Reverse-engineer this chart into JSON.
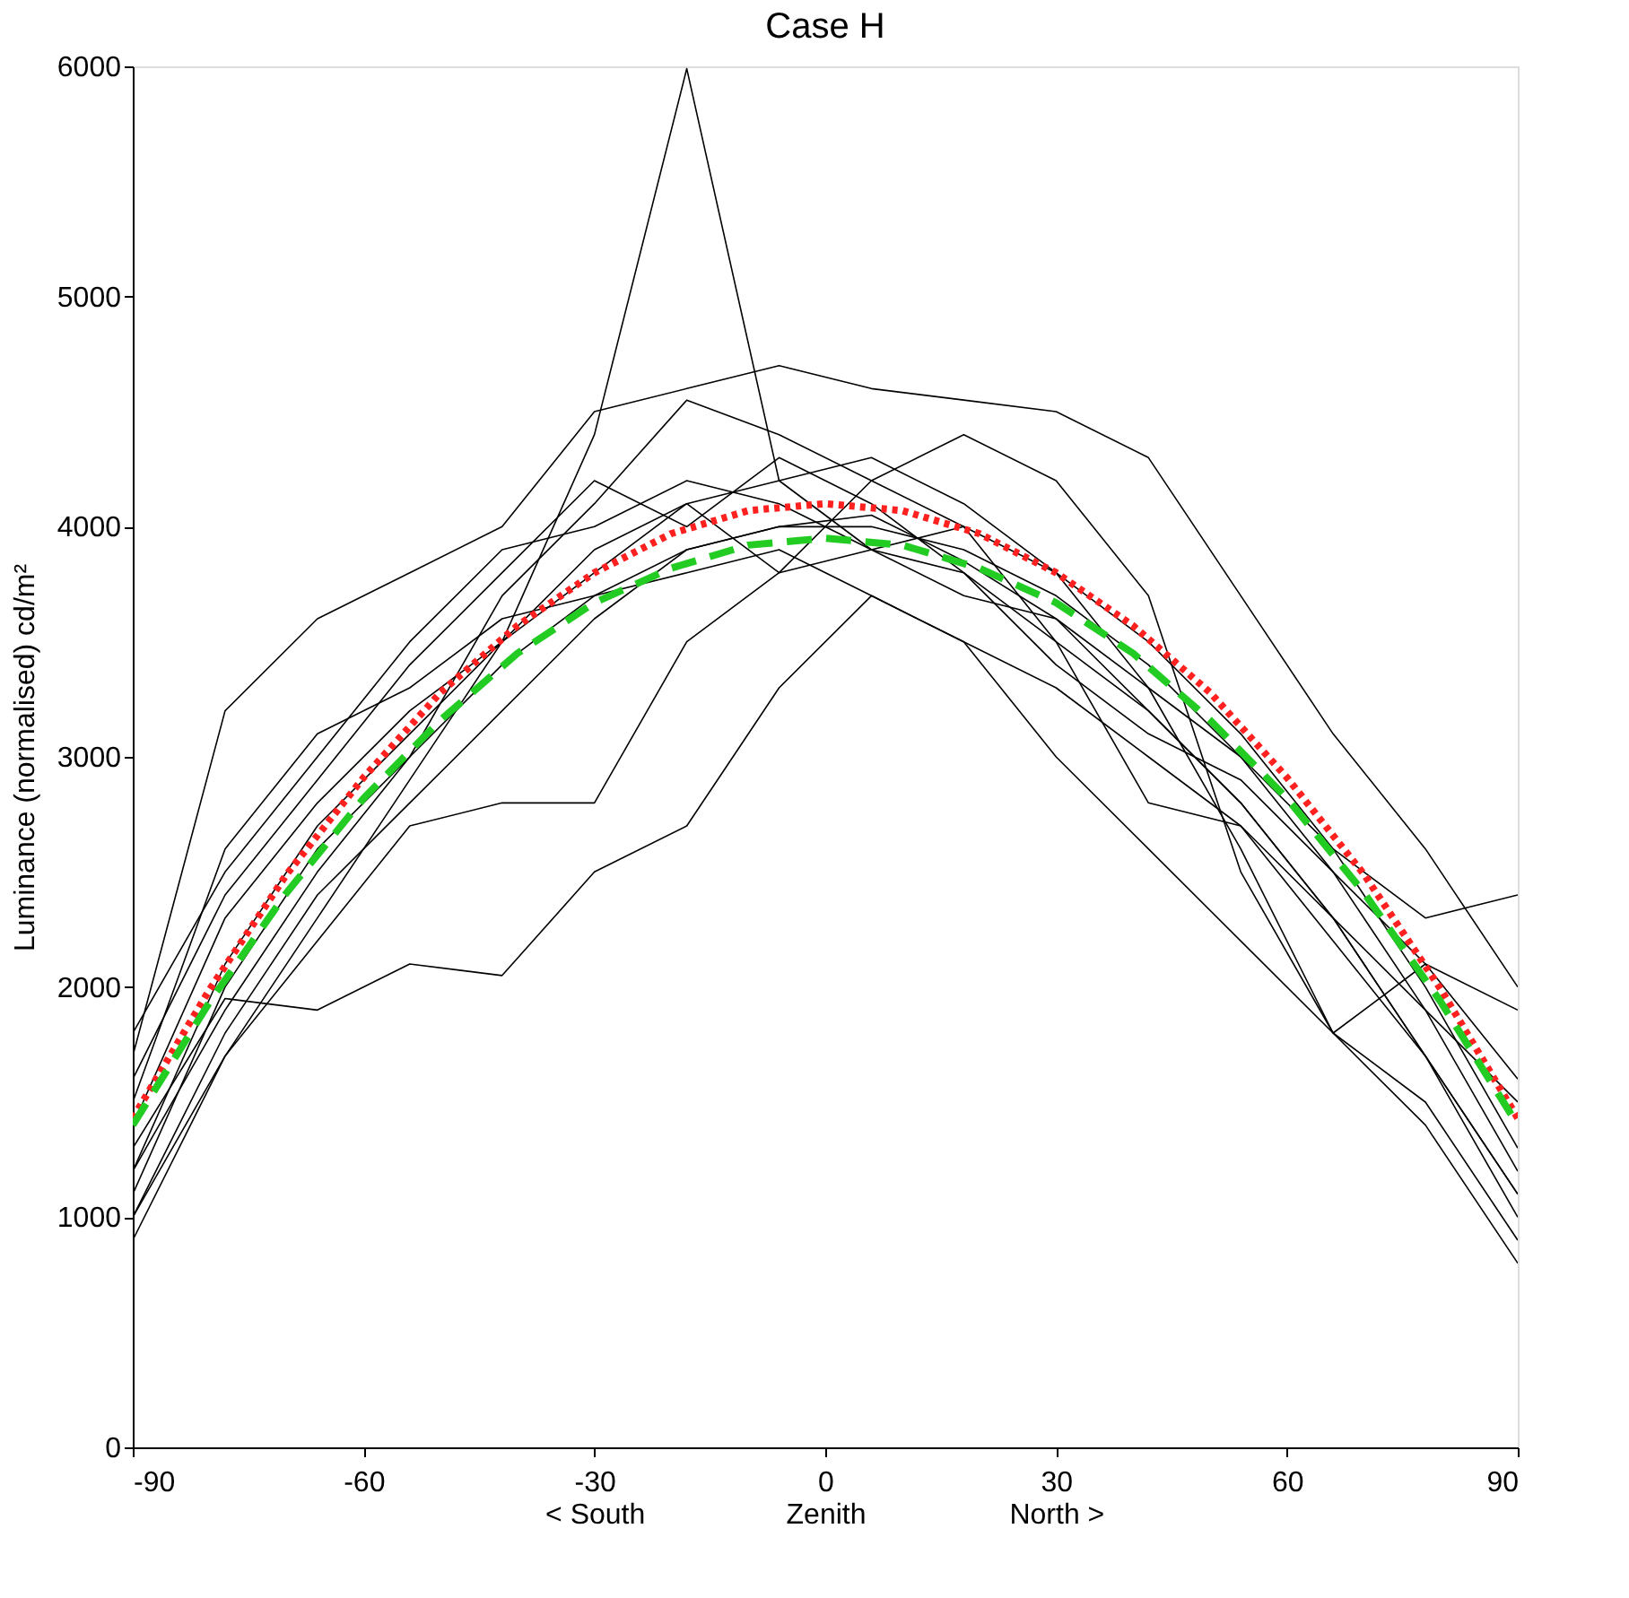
{
  "chart_data": {
    "type": "line",
    "title": "Case H",
    "ylabel": "Luminance (normalised) cd/m²",
    "xlim": [
      -90,
      90
    ],
    "ylim": [
      0,
      6000
    ],
    "xticks": [
      -90,
      -60,
      {
        "value": -30,
        "label": "-30\n< South"
      },
      {
        "value": 0,
        "label": "0\nZenith"
      },
      {
        "value": 30,
        "label": "30\nNorth >"
      },
      60,
      90
    ],
    "yticks": [
      0,
      1000,
      2000,
      3000,
      4000,
      5000,
      6000
    ],
    "grid": false,
    "line_style": "solid",
    "marker": "none",
    "x": [
      -90,
      -78,
      -66,
      -54,
      -42,
      -30,
      -18,
      -6,
      6,
      18,
      30,
      42,
      54,
      66,
      78,
      90
    ],
    "series": [
      {
        "color": "#000000",
        "values": [
          1200,
          1900,
          2500,
          3000,
          3400,
          3700,
          3900,
          4000,
          4000,
          3900,
          3700,
          3400,
          3000,
          2500,
          1900,
          1200
        ]
      },
      {
        "color": "#000000",
        "values": [
          1000,
          1700,
          2300,
          2900,
          3500,
          4400,
          5990,
          4200,
          3900,
          3800,
          3500,
          3200,
          2800,
          2300,
          1700,
          1100
        ]
      },
      {
        "color": "#000000",
        "values": [
          1300,
          1950,
          1900,
          2100,
          2050,
          2500,
          2700,
          3300,
          3700,
          3500,
          3000,
          2600,
          2200,
          1800,
          1500,
          900
        ]
      },
      {
        "color": "#000000",
        "values": [
          1700,
          3200,
          3600,
          3800,
          4000,
          4500,
          4600,
          4700,
          4600,
          4550,
          4500,
          4300,
          3700,
          3100,
          2600,
          2000
        ]
      },
      {
        "color": "#000000",
        "values": [
          1400,
          2300,
          2800,
          3200,
          3500,
          3800,
          4100,
          4200,
          4300,
          4100,
          3800,
          3300,
          2600,
          1800,
          2100,
          1600
        ]
      },
      {
        "color": "#000000",
        "values": [
          1100,
          2000,
          2600,
          3000,
          3700,
          4100,
          4550,
          4400,
          4200,
          4000,
          3500,
          2800,
          2700,
          2200,
          1700,
          1000
        ]
      },
      {
        "color": "#000000",
        "values": [
          1500,
          2600,
          3100,
          3300,
          3600,
          3700,
          3800,
          3900,
          3700,
          3500,
          3300,
          3000,
          2700,
          2300,
          1900,
          1500
        ]
      },
      {
        "color": "#000000",
        "values": [
          900,
          1700,
          2200,
          2700,
          2800,
          2800,
          3500,
          3800,
          4200,
          4400,
          4200,
          3700,
          2500,
          1800,
          1400,
          800
        ]
      },
      {
        "color": "#000000",
        "values": [
          1600,
          2400,
          2900,
          3400,
          3800,
          4200,
          4000,
          4300,
          4100,
          3800,
          3400,
          3100,
          2900,
          2500,
          2100,
          1900
        ]
      },
      {
        "color": "#000000",
        "values": [
          1200,
          2100,
          2700,
          3100,
          3500,
          3900,
          4100,
          3800,
          3900,
          4000,
          3800,
          3500,
          3100,
          2600,
          2000,
          1300
        ]
      },
      {
        "color": "#000000",
        "values": [
          1800,
          2500,
          3000,
          3500,
          3900,
          4000,
          4200,
          4100,
          3900,
          3700,
          3600,
          3300,
          3000,
          2600,
          2300,
          2400
        ]
      },
      {
        "color": "#000000",
        "values": [
          1000,
          1800,
          2400,
          2800,
          3200,
          3600,
          3900,
          4000,
          4050,
          3850,
          3600,
          3200,
          2800,
          2300,
          1700,
          1100
        ]
      },
      {
        "color": "#ff2020",
        "line_style": "dotted",
        "x": [
          -90,
          -80,
          -70,
          -60,
          -50,
          -40,
          -30,
          -20,
          -10,
          0,
          10,
          20,
          30,
          40,
          50,
          60,
          70,
          80,
          90
        ],
        "values": [
          1430,
          1990,
          2490,
          2910,
          3280,
          3570,
          3800,
          3970,
          4070,
          4100,
          4070,
          3970,
          3800,
          3570,
          3280,
          2910,
          2490,
          1990,
          1430
        ]
      },
      {
        "color": "#22cc22",
        "line_style": "dashed",
        "x": [
          -90,
          -80,
          -70,
          -60,
          -50,
          -40,
          -30,
          -20,
          -10,
          0,
          10,
          20,
          30,
          40,
          50,
          60,
          70,
          80,
          90
        ],
        "values": [
          1400,
          1935,
          2410,
          2820,
          3160,
          3450,
          3670,
          3820,
          3920,
          3950,
          3920,
          3820,
          3670,
          3450,
          3160,
          2820,
          2410,
          1935,
          1400
        ]
      }
    ]
  }
}
